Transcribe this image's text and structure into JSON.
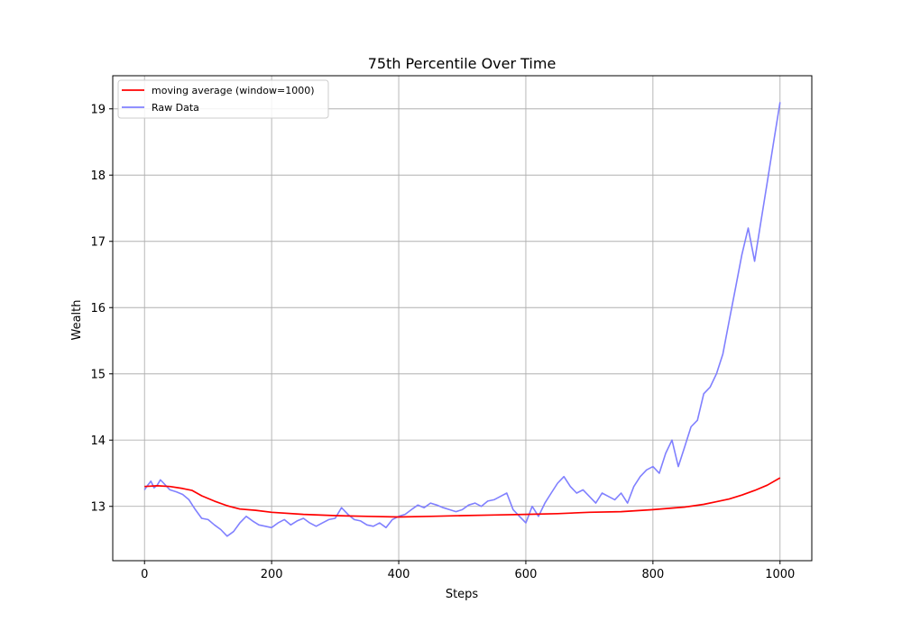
{
  "chart_data": {
    "type": "line",
    "title": "75th Percentile Over Time",
    "xlabel": "Steps",
    "ylabel": "Wealth",
    "xlim": [
      -50,
      1050
    ],
    "ylim": [
      12.18,
      19.5
    ],
    "xticks": [
      0,
      200,
      400,
      600,
      800,
      1000
    ],
    "yticks": [
      13,
      14,
      15,
      16,
      17,
      18,
      19
    ],
    "grid": true,
    "legend_position": "top-left",
    "series": [
      {
        "name": "moving average (window=1000)",
        "color": "#ff0000",
        "x": [
          0,
          20,
          40,
          60,
          75,
          90,
          110,
          130,
          150,
          175,
          200,
          250,
          300,
          350,
          400,
          450,
          500,
          550,
          600,
          650,
          700,
          750,
          800,
          850,
          880,
          900,
          920,
          940,
          960,
          980,
          1000
        ],
        "y": [
          13.3,
          13.31,
          13.3,
          13.27,
          13.24,
          13.16,
          13.08,
          13.01,
          12.96,
          12.94,
          12.91,
          12.88,
          12.86,
          12.85,
          12.84,
          12.85,
          12.86,
          12.87,
          12.88,
          12.89,
          12.91,
          12.92,
          12.95,
          12.99,
          13.03,
          13.07,
          13.11,
          13.17,
          13.24,
          13.32,
          13.43
        ]
      },
      {
        "name": "Raw Data",
        "color": "#8080ff",
        "x": [
          0,
          5,
          10,
          15,
          20,
          25,
          30,
          40,
          50,
          60,
          70,
          80,
          90,
          100,
          110,
          120,
          130,
          140,
          150,
          160,
          170,
          180,
          190,
          200,
          210,
          220,
          230,
          240,
          250,
          260,
          270,
          280,
          290,
          300,
          310,
          320,
          330,
          340,
          350,
          360,
          370,
          380,
          390,
          400,
          410,
          420,
          430,
          440,
          450,
          460,
          470,
          480,
          490,
          500,
          510,
          520,
          530,
          540,
          550,
          560,
          570,
          580,
          590,
          600,
          610,
          620,
          630,
          640,
          650,
          660,
          670,
          680,
          690,
          700,
          710,
          720,
          730,
          740,
          750,
          760,
          770,
          780,
          790,
          800,
          810,
          820,
          830,
          840,
          850,
          860,
          870,
          880,
          890,
          900,
          910,
          920,
          930,
          940,
          950,
          960,
          970,
          980,
          990,
          1000
        ],
        "y": [
          13.25,
          13.32,
          13.38,
          13.28,
          13.32,
          13.4,
          13.35,
          13.25,
          13.22,
          13.18,
          13.1,
          12.95,
          12.82,
          12.8,
          12.72,
          12.65,
          12.55,
          12.62,
          12.75,
          12.85,
          12.78,
          12.72,
          12.7,
          12.68,
          12.75,
          12.8,
          12.72,
          12.78,
          12.82,
          12.75,
          12.7,
          12.75,
          12.8,
          12.82,
          12.98,
          12.88,
          12.8,
          12.78,
          12.72,
          12.7,
          12.75,
          12.68,
          12.8,
          12.85,
          12.88,
          12.95,
          13.02,
          12.98,
          13.05,
          13.02,
          12.98,
          12.95,
          12.92,
          12.95,
          13.02,
          13.05,
          13.0,
          13.08,
          13.1,
          13.15,
          13.2,
          12.95,
          12.85,
          12.75,
          13.0,
          12.85,
          13.05,
          13.2,
          13.35,
          13.45,
          13.3,
          13.2,
          13.25,
          13.15,
          13.05,
          13.2,
          13.15,
          13.1,
          13.2,
          13.05,
          13.3,
          13.45,
          13.55,
          13.6,
          13.5,
          13.8,
          14.0,
          13.6,
          13.9,
          14.2,
          14.3,
          14.7,
          14.8,
          15.0,
          15.3,
          15.8,
          16.3,
          16.8,
          17.2,
          16.7,
          17.3,
          17.9,
          18.5,
          19.1
        ]
      }
    ]
  }
}
